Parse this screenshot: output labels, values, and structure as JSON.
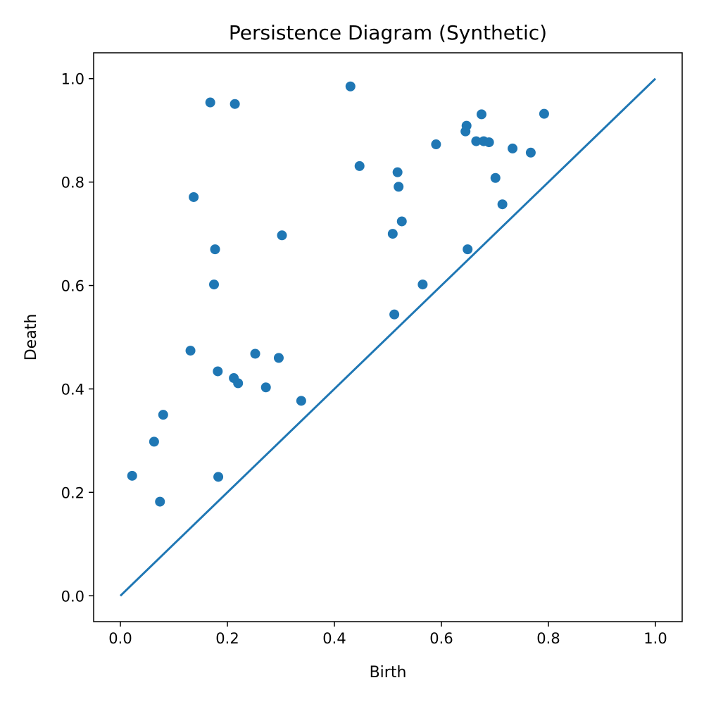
{
  "chart_data": {
    "type": "scatter",
    "title": "Persistence Diagram (Synthetic)",
    "xlabel": "Birth",
    "ylabel": "Death",
    "xlim": [
      -0.05,
      1.05
    ],
    "ylim": [
      -0.05,
      1.05
    ],
    "xticks": [
      "0.0",
      "0.2",
      "0.4",
      "0.6",
      "0.8",
      "1.0"
    ],
    "yticks": [
      "0.0",
      "0.2",
      "0.4",
      "0.6",
      "0.8",
      "1.0"
    ],
    "grid": false,
    "legend": "none",
    "color": "#1f77b4",
    "diagonal": {
      "x": [
        0,
        1
      ],
      "y": [
        0,
        1
      ]
    },
    "points": [
      {
        "x": 0.022,
        "y": 0.232
      },
      {
        "x": 0.063,
        "y": 0.298
      },
      {
        "x": 0.074,
        "y": 0.182
      },
      {
        "x": 0.08,
        "y": 0.35
      },
      {
        "x": 0.131,
        "y": 0.474
      },
      {
        "x": 0.137,
        "y": 0.771
      },
      {
        "x": 0.168,
        "y": 0.954
      },
      {
        "x": 0.175,
        "y": 0.602
      },
      {
        "x": 0.177,
        "y": 0.67
      },
      {
        "x": 0.182,
        "y": 0.434
      },
      {
        "x": 0.183,
        "y": 0.23
      },
      {
        "x": 0.212,
        "y": 0.421
      },
      {
        "x": 0.214,
        "y": 0.951
      },
      {
        "x": 0.22,
        "y": 0.411
      },
      {
        "x": 0.252,
        "y": 0.468
      },
      {
        "x": 0.272,
        "y": 0.403
      },
      {
        "x": 0.296,
        "y": 0.46
      },
      {
        "x": 0.302,
        "y": 0.697
      },
      {
        "x": 0.338,
        "y": 0.377
      },
      {
        "x": 0.43,
        "y": 0.985
      },
      {
        "x": 0.447,
        "y": 0.831
      },
      {
        "x": 0.509,
        "y": 0.7
      },
      {
        "x": 0.512,
        "y": 0.544
      },
      {
        "x": 0.518,
        "y": 0.819
      },
      {
        "x": 0.52,
        "y": 0.791
      },
      {
        "x": 0.526,
        "y": 0.724
      },
      {
        "x": 0.565,
        "y": 0.602
      },
      {
        "x": 0.59,
        "y": 0.873
      },
      {
        "x": 0.645,
        "y": 0.898
      },
      {
        "x": 0.647,
        "y": 0.909
      },
      {
        "x": 0.649,
        "y": 0.67
      },
      {
        "x": 0.665,
        "y": 0.879
      },
      {
        "x": 0.675,
        "y": 0.931
      },
      {
        "x": 0.679,
        "y": 0.879
      },
      {
        "x": 0.689,
        "y": 0.877
      },
      {
        "x": 0.701,
        "y": 0.808
      },
      {
        "x": 0.714,
        "y": 0.757
      },
      {
        "x": 0.733,
        "y": 0.865
      },
      {
        "x": 0.767,
        "y": 0.857
      },
      {
        "x": 0.792,
        "y": 0.932
      }
    ]
  }
}
